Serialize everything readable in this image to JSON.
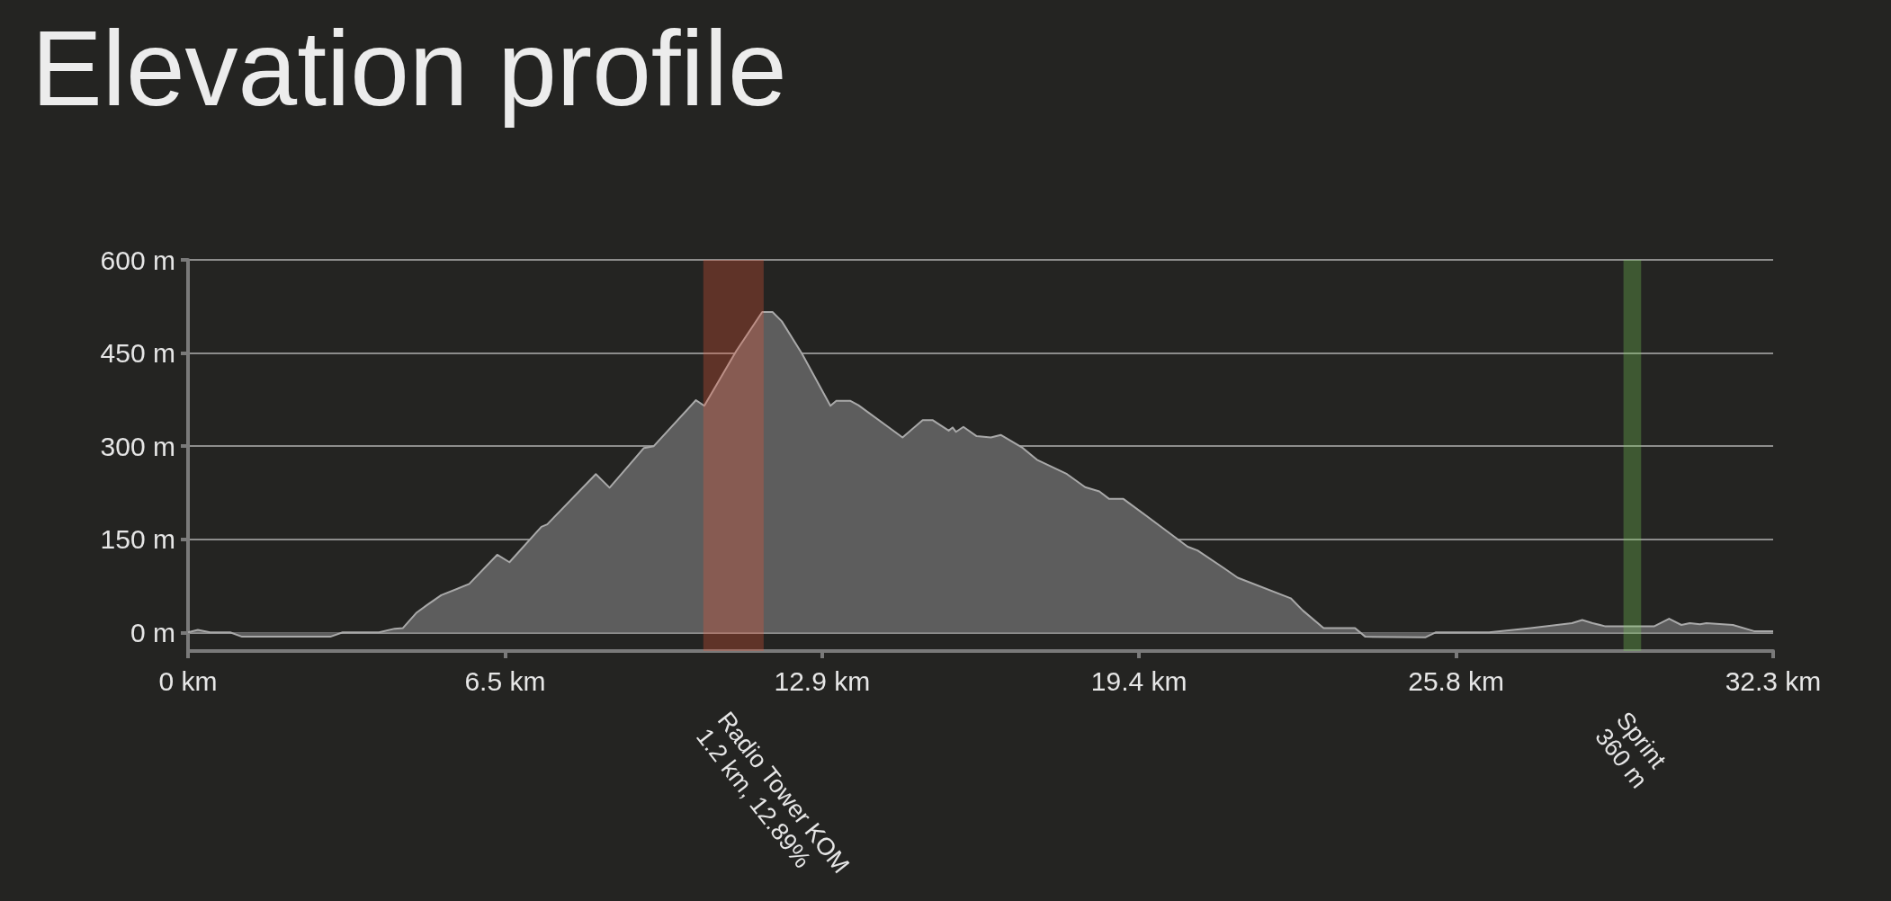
{
  "chart_data": {
    "type": "area",
    "title": "Elevation profile",
    "x": [
      0,
      0.2,
      0.45,
      0.86,
      1.1,
      2.9,
      3.15,
      3.89,
      4.21,
      4.38,
      4.66,
      4.87,
      5.16,
      5.73,
      6.3,
      6.55,
      7.2,
      7.32,
      8.31,
      8.59,
      9.29,
      9.49,
      10.35,
      10.52,
      11.17,
      11.7,
      11.91,
      12.1,
      12.51,
      13.09,
      13.21,
      13.49,
      13.66,
      14.56,
      14.97,
      15.17,
      15.5,
      15.58,
      15.65,
      15.8,
      16.07,
      16.36,
      16.56,
      17.01,
      17.3,
      17.91,
      18.28,
      18.57,
      18.77,
      19.06,
      19.88,
      20.37,
      20.57,
      21.1,
      21.39,
      22.47,
      22.72,
      23.14,
      23.78,
      23.99,
      25.21,
      25.42,
      26.51,
      27.36,
      28.2,
      28.41,
      28.62,
      28.87,
      29.88,
      30.18,
      30.43,
      30.6,
      30.81,
      30.94,
      31.48,
      31.91,
      32.3
    ],
    "series": [
      {
        "color": "#5d5d5d",
        "values": [
          0,
          4,
          0,
          0,
          -7,
          -7,
          0,
          0,
          6,
          7,
          32,
          44,
          60,
          78,
          125,
          113,
          170,
          174,
          255,
          233,
          297,
          300,
          374,
          365,
          453,
          516,
          516,
          501,
          449,
          365,
          373,
          373,
          366,
          314,
          342,
          342,
          325,
          330,
          323,
          331,
          316,
          314,
          318,
          297,
          278,
          255,
          234,
          227,
          215,
          215,
          167,
          138,
          132,
          104,
          88,
          55,
          35,
          7,
          7,
          -7,
          -8,
          0,
          0,
          7,
          15,
          20,
          15,
          10,
          10,
          22,
          12,
          15,
          13,
          15,
          12,
          2,
          2
        ]
      }
    ],
    "xlim": [
      0,
      32.3
    ],
    "xticks": [
      {
        "value": 0,
        "label": "0 km"
      },
      {
        "value": 6.46,
        "label": "6.5 km"
      },
      {
        "value": 12.92,
        "label": "12.9 km"
      },
      {
        "value": 19.38,
        "label": "19.4 km"
      },
      {
        "value": 25.84,
        "label": "25.8 km"
      },
      {
        "value": 32.3,
        "label": "32.3 km"
      }
    ],
    "ylim": [
      -30,
      600
    ],
    "yticks": [
      {
        "value": 0,
        "label": "0 m"
      },
      {
        "value": 150,
        "label": "150 m"
      },
      {
        "value": 300,
        "label": "300 m"
      },
      {
        "value": 450,
        "label": "450 m"
      },
      {
        "value": 600,
        "label": "600 m"
      }
    ],
    "bands": [
      {
        "axis": "x",
        "from": 10.5,
        "to": 11.73,
        "label": "Radio Tower KOM\n1.2 km, 12.89%",
        "color": "#e95739"
      },
      {
        "axis": "x",
        "from": 29.25,
        "to": 29.61,
        "label": "Sprint\n360 m",
        "color": "#7bcf5a"
      }
    ],
    "grid": "y",
    "marker": "none",
    "line_style": "solid"
  }
}
